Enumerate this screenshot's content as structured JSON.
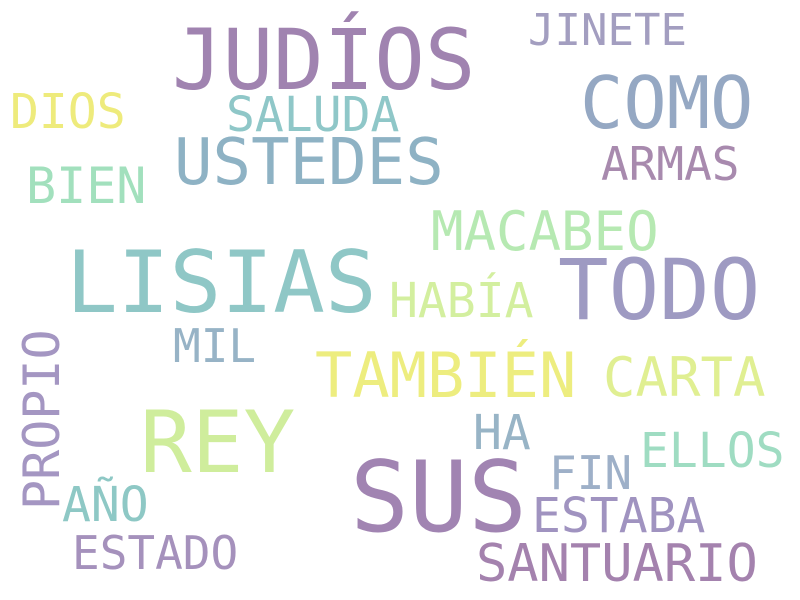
{
  "word_cloud": {
    "words": [
      {
        "text": "JUDÍOS",
        "color": "#a083b0"
      },
      {
        "text": "JINETE",
        "color": "#a39ec0"
      },
      {
        "text": "COMO",
        "color": "#95a8c3"
      },
      {
        "text": "DIOS",
        "color": "#eeeb7c"
      },
      {
        "text": "SALUDA",
        "color": "#8fc7c8"
      },
      {
        "text": "USTEDES",
        "color": "#8eb2c4"
      },
      {
        "text": "ARMAS",
        "color": "#a88aae"
      },
      {
        "text": "BIEN",
        "color": "#a2e0bd"
      },
      {
        "text": "MACABEO",
        "color": "#b6e9b2"
      },
      {
        "text": "LISIAS",
        "color": "#8fc7c6"
      },
      {
        "text": "TODO",
        "color": "#9e9ac2"
      },
      {
        "text": "HABÍA",
        "color": "#d3ef9f"
      },
      {
        "text": "PROPIO",
        "color": "#a496c2"
      },
      {
        "text": "MIL",
        "color": "#97b3c6"
      },
      {
        "text": "TAMBIÉN",
        "color": "#eded7f"
      },
      {
        "text": "CARTA",
        "color": "#e0ef92"
      },
      {
        "text": "REY",
        "color": "#cfed9c"
      },
      {
        "text": "HA",
        "color": "#98b4c6"
      },
      {
        "text": "ELLOS",
        "color": "#9fdcc2"
      },
      {
        "text": "FIN",
        "color": "#9eb0c8"
      },
      {
        "text": "SUS",
        "color": "#a184b2"
      },
      {
        "text": "AÑO",
        "color": "#8ec8c5"
      },
      {
        "text": "ESTABA",
        "color": "#a093c0"
      },
      {
        "text": "ESTADO",
        "color": "#a591bc"
      },
      {
        "text": "SANTUARIO",
        "color": "#a482ae"
      }
    ]
  }
}
